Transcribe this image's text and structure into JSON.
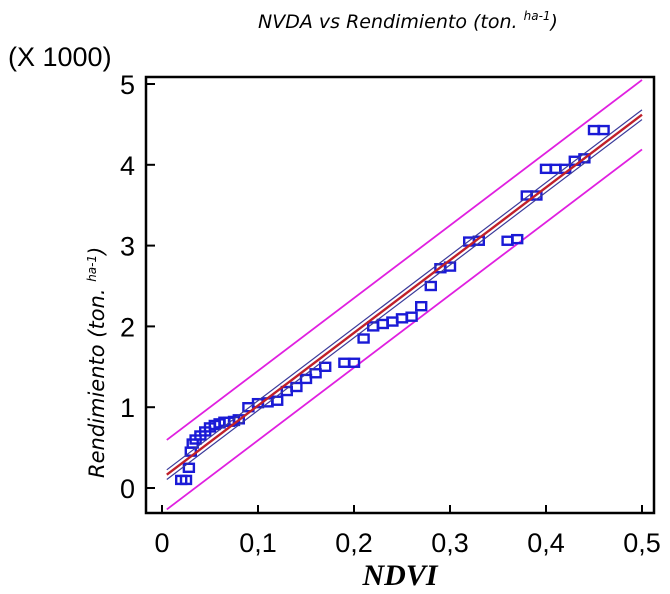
{
  "chart_data": {
    "type": "scatter",
    "title": "NVDA vs Rendimiento (ton. ",
    "title_sup": "ha-1",
    "title_close": ")",
    "xlabel": "NDVI",
    "ylabel": "Rendimiento (ton. ",
    "ylabel_sup": "ha-1",
    "ylabel_close": ")",
    "y_multiplier": "(X 1000)",
    "xlim": [
      0,
      0.5
    ],
    "ylim": [
      0,
      5
    ],
    "xticks": [
      "0",
      "0,1",
      "0,2",
      "0,3",
      "0,4",
      "0,5"
    ],
    "yticks": [
      "0",
      "1",
      "2",
      "3",
      "4",
      "5"
    ],
    "series": [
      {
        "marker": "open-square",
        "color": "#1a1ad6",
        "points": [
          [
            0.02,
            0.1
          ],
          [
            0.025,
            0.1
          ],
          [
            0.028,
            0.25
          ],
          [
            0.03,
            0.45
          ],
          [
            0.032,
            0.55
          ],
          [
            0.035,
            0.6
          ],
          [
            0.04,
            0.65
          ],
          [
            0.045,
            0.7
          ],
          [
            0.05,
            0.75
          ],
          [
            0.055,
            0.78
          ],
          [
            0.06,
            0.8
          ],
          [
            0.065,
            0.82
          ],
          [
            0.07,
            0.82
          ],
          [
            0.075,
            0.83
          ],
          [
            0.08,
            0.85
          ],
          [
            0.09,
            1.0
          ],
          [
            0.1,
            1.05
          ],
          [
            0.11,
            1.06
          ],
          [
            0.12,
            1.08
          ],
          [
            0.13,
            1.2
          ],
          [
            0.14,
            1.25
          ],
          [
            0.15,
            1.35
          ],
          [
            0.16,
            1.42
          ],
          [
            0.17,
            1.5
          ],
          [
            0.19,
            1.55
          ],
          [
            0.2,
            1.55
          ],
          [
            0.21,
            1.85
          ],
          [
            0.22,
            2.0
          ],
          [
            0.23,
            2.03
          ],
          [
            0.24,
            2.06
          ],
          [
            0.25,
            2.1
          ],
          [
            0.26,
            2.12
          ],
          [
            0.27,
            2.25
          ],
          [
            0.28,
            2.5
          ],
          [
            0.29,
            2.72
          ],
          [
            0.3,
            2.74
          ],
          [
            0.32,
            3.05
          ],
          [
            0.33,
            3.06
          ],
          [
            0.36,
            3.06
          ],
          [
            0.37,
            3.08
          ],
          [
            0.38,
            3.62
          ],
          [
            0.39,
            3.62
          ],
          [
            0.4,
            3.95
          ],
          [
            0.41,
            3.95
          ],
          [
            0.42,
            3.95
          ],
          [
            0.43,
            4.05
          ],
          [
            0.44,
            4.08
          ],
          [
            0.45,
            4.43
          ],
          [
            0.46,
            4.43
          ]
        ]
      }
    ],
    "fit": {
      "color": "#c0202a",
      "intercept": 0.12,
      "slope": 9.0,
      "confidence_band": 0.06,
      "prediction_band": 0.43,
      "prediction_color": "#e020e0"
    },
    "grid": false
  }
}
